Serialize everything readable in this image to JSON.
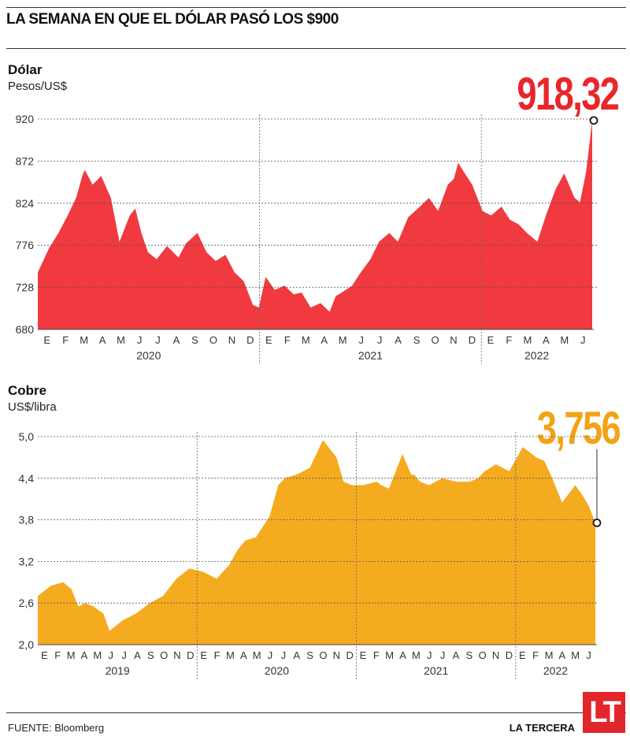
{
  "header": {
    "title": "LA SEMANA EN QUE EL DÓLAR PASÓ LOS $900"
  },
  "footer": {
    "source": "FUENTE: Bloomberg",
    "brand": "LA TERCERA",
    "logo_text": "LT"
  },
  "colors": {
    "dolar_fill": "#f03a3f",
    "cobre_fill": "#f5ab20",
    "dolar_label": "#e8262b",
    "cobre_label": "#f2a316"
  },
  "chart_data": [
    {
      "type": "area",
      "title": "Dólar",
      "ylabel": "Pesos/US$",
      "ylim": [
        680,
        920
      ],
      "yticks": [
        "920",
        "872",
        "824",
        "776",
        "728",
        "680"
      ],
      "month_labels": [
        "E",
        "F",
        "M",
        "A",
        "M",
        "J",
        "J",
        "A",
        "S",
        "O",
        "N",
        "D",
        "E",
        "F",
        "M",
        "A",
        "M",
        "J",
        "J",
        "A",
        "S",
        "O",
        "N",
        "D",
        "E",
        "F",
        "M",
        "A",
        "M",
        "J"
      ],
      "year_labels": [
        "2020",
        "2021",
        "2022"
      ],
      "grid": true,
      "last_value_label": "918,32",
      "x_start": "2020-01-02",
      "x_end": "2022-06-30",
      "series": [
        {
          "x": [
            "2020-01-02",
            "2020-01-20",
            "2020-02-05",
            "2020-02-20",
            "2020-03-05",
            "2020-03-15",
            "2020-03-19",
            "2020-04-01",
            "2020-04-15",
            "2020-05-01",
            "2020-05-15",
            "2020-06-01",
            "2020-06-10",
            "2020-06-20",
            "2020-07-01",
            "2020-07-15",
            "2020-08-01",
            "2020-08-20",
            "2020-09-01",
            "2020-09-20",
            "2020-10-05",
            "2020-10-20",
            "2020-11-05",
            "2020-11-20",
            "2020-12-05",
            "2020-12-20",
            "2020-12-30",
            "2021-01-10",
            "2021-01-25",
            "2021-02-10",
            "2021-02-25",
            "2021-03-10",
            "2021-03-25",
            "2021-04-10",
            "2021-04-25",
            "2021-05-05",
            "2021-05-15",
            "2021-06-01",
            "2021-06-15",
            "2021-07-01",
            "2021-07-15",
            "2021-08-01",
            "2021-08-15",
            "2021-09-01",
            "2021-09-20",
            "2021-10-05",
            "2021-10-20",
            "2021-11-05",
            "2021-11-15",
            "2021-11-22",
            "2021-12-01",
            "2021-12-15",
            "2022-01-01",
            "2022-01-15",
            "2022-02-01",
            "2022-02-15",
            "2022-03-01",
            "2022-03-15",
            "2022-04-01",
            "2022-04-15",
            "2022-05-01",
            "2022-05-15",
            "2022-06-01",
            "2022-06-10",
            "2022-06-20",
            "2022-06-30"
          ],
          "y": [
            745,
            772,
            790,
            810,
            830,
            855,
            862,
            845,
            855,
            830,
            780,
            810,
            818,
            790,
            768,
            760,
            775,
            762,
            778,
            790,
            768,
            758,
            765,
            745,
            735,
            708,
            705,
            740,
            725,
            730,
            720,
            722,
            705,
            710,
            700,
            718,
            722,
            730,
            745,
            760,
            780,
            790,
            780,
            808,
            820,
            830,
            815,
            845,
            852,
            870,
            860,
            845,
            815,
            810,
            820,
            805,
            800,
            790,
            780,
            810,
            840,
            858,
            830,
            825,
            860,
            918.32
          ]
        }
      ]
    },
    {
      "type": "area",
      "title": "Cobre",
      "ylabel": "US$/libra",
      "ylim": [
        2.0,
        5.0
      ],
      "yticks": [
        "5,0",
        "4,4",
        "3,8",
        "3,2",
        "2,6",
        "2,0"
      ],
      "month_labels": [
        "E",
        "F",
        "M",
        "A",
        "M",
        "J",
        "J",
        "A",
        "S",
        "O",
        "N",
        "D",
        "E",
        "F",
        "M",
        "A",
        "M",
        "J",
        "J",
        "A",
        "S",
        "O",
        "N",
        "D",
        "E",
        "F",
        "M",
        "A",
        "M",
        "J",
        "J",
        "A",
        "S",
        "O",
        "N",
        "D",
        "E",
        "F",
        "M",
        "A",
        "M",
        "J"
      ],
      "year_labels": [
        "2019",
        "2020",
        "2021",
        "2022"
      ],
      "grid": true,
      "last_value_label": "3,756",
      "x_start": "2019-01-02",
      "x_end": "2022-06-30",
      "series": [
        {
          "x": [
            "2019-01-02",
            "2019-02-01",
            "2019-03-01",
            "2019-03-20",
            "2019-04-05",
            "2019-04-20",
            "2019-05-10",
            "2019-05-20",
            "2019-06-01",
            "2019-06-15",
            "2019-07-15",
            "2019-08-15",
            "2019-09-15",
            "2019-10-15",
            "2019-11-15",
            "2019-12-15",
            "2020-01-15",
            "2020-02-15",
            "2020-03-15",
            "2020-04-01",
            "2020-04-20",
            "2020-05-15",
            "2020-06-15",
            "2020-07-05",
            "2020-07-20",
            "2020-08-15",
            "2020-09-15",
            "2020-10-15",
            "2020-11-15",
            "2020-12-01",
            "2020-12-20",
            "2021-01-15",
            "2021-02-15",
            "2021-02-25",
            "2021-03-15",
            "2021-04-15",
            "2021-05-05",
            "2021-05-12",
            "2021-05-25",
            "2021-06-15",
            "2021-07-15",
            "2021-08-15",
            "2021-09-15",
            "2021-10-05",
            "2021-10-20",
            "2021-11-15",
            "2021-12-15",
            "2022-01-15",
            "2022-02-15",
            "2022-03-05",
            "2022-03-20",
            "2022-04-15",
            "2022-05-15",
            "2022-06-01",
            "2022-06-15",
            "2022-06-30"
          ],
          "y": [
            2.7,
            2.85,
            2.9,
            2.8,
            2.55,
            2.6,
            2.55,
            2.5,
            2.45,
            2.2,
            2.35,
            2.45,
            2.6,
            2.7,
            2.95,
            3.1,
            3.05,
            2.95,
            3.15,
            3.35,
            3.5,
            3.55,
            3.85,
            4.3,
            4.4,
            4.45,
            4.55,
            4.95,
            4.7,
            4.35,
            4.3,
            4.3,
            4.35,
            4.3,
            4.25,
            4.75,
            4.45,
            4.45,
            4.35,
            4.3,
            4.4,
            4.35,
            4.35,
            4.4,
            4.5,
            4.6,
            4.5,
            4.85,
            4.7,
            4.65,
            4.45,
            4.05,
            4.3,
            4.15,
            4.0,
            3.756
          ]
        }
      ]
    }
  ]
}
